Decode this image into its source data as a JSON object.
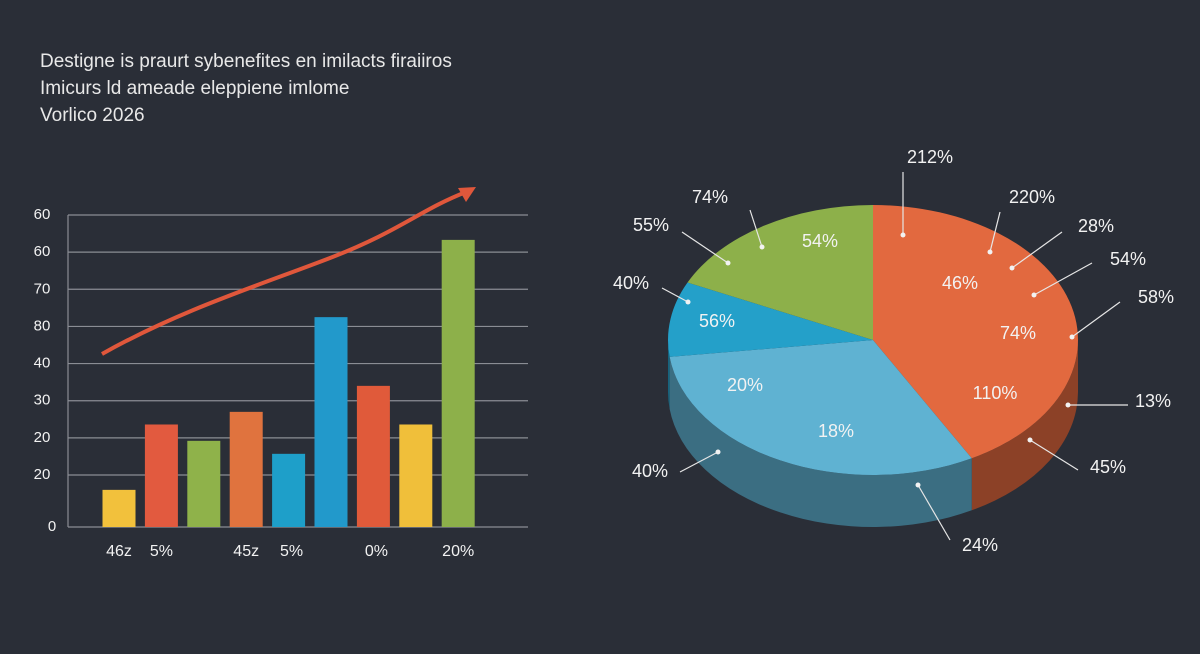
{
  "header": {
    "lines": [
      "Destigne is praurt sybenefites en imilacts firaiiros",
      "Imicurs ld ameade eleppiene imlome",
      "Vorlico 2026"
    ]
  },
  "chart_data": [
    {
      "type": "bar",
      "categories": [
        "46z",
        "5%",
        null,
        "45z",
        "5%",
        null,
        "0%",
        null,
        "20%"
      ],
      "values": [
        10,
        27.6,
        23.2,
        31,
        19.7,
        56.5,
        38,
        27.6,
        77.3
      ],
      "colors": [
        "#f2c13c",
        "#e25a3f",
        "#8fb24a",
        "#e0733e",
        "#1e9fc9",
        "#2299cb",
        "#e05a3a",
        "#f0bf3a",
        "#8db04a"
      ],
      "ylim": [
        0,
        84
      ],
      "yticks": [
        0,
        {
          "value": 14,
          "label": "20"
        },
        {
          "value": 24,
          "label": "20"
        },
        {
          "value": 34,
          "label": "30"
        },
        {
          "value": 44,
          "label": "40"
        },
        {
          "value": 54,
          "label": "80"
        },
        {
          "value": 64,
          "label": "70"
        },
        {
          "value": 74,
          "label": "60"
        },
        {
          "value": 84,
          "label": "60"
        }
      ],
      "grid": true
    },
    {
      "type": "pie",
      "values": [
        42,
        31,
        9,
        18
      ],
      "colors": [
        "#e2693f",
        "#5fb2d2",
        "#24a0c9",
        "#8db04a"
      ],
      "annotations": [
        "212%",
        "74%",
        "55%",
        "40%",
        "220%",
        "28%",
        "54%",
        "58%",
        "13%",
        "45%",
        "24%",
        "40%",
        "54%",
        "46%",
        "56%",
        "74%",
        "20%",
        "110%",
        "18%"
      ]
    }
  ]
}
